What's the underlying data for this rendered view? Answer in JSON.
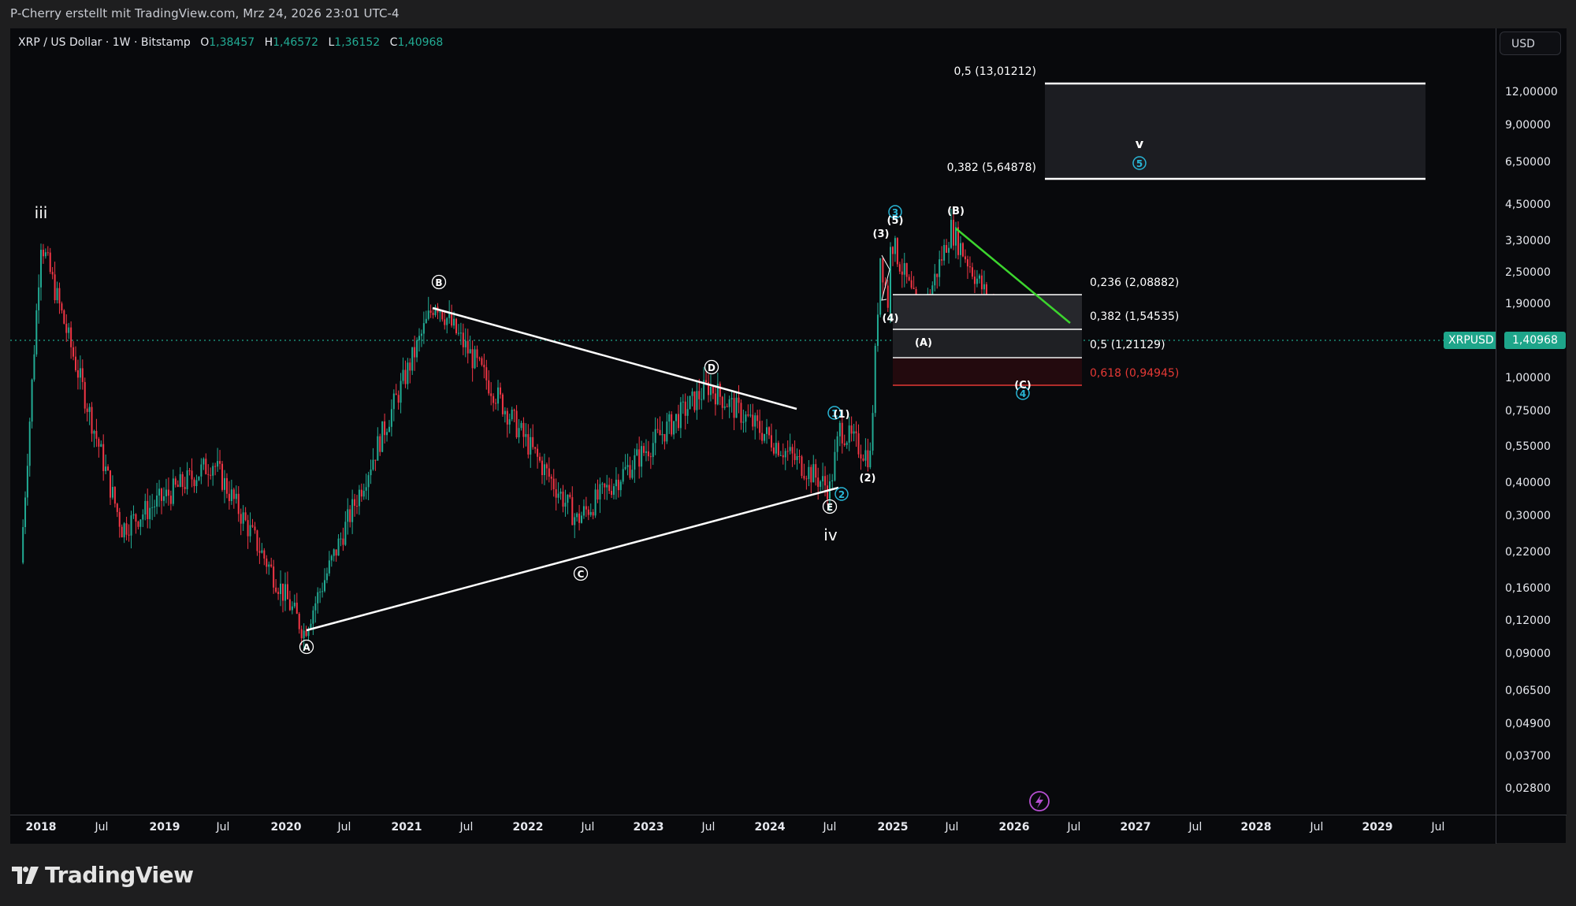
{
  "header": {
    "attribution": "P-Cherry erstellt mit TradingView.com, Mrz 24, 2026 23:01 UTC-4"
  },
  "legend": {
    "symbol_desc": "XRP / US Dollar · 1W · Bitstamp",
    "open_label": "O",
    "open": "1,38457",
    "high_label": "H",
    "high": "1,46572",
    "low_label": "L",
    "low": "1,36152",
    "close_label": "C",
    "close": "1,40968"
  },
  "price_axis": {
    "currency_button": "USD",
    "ticks": [
      "12,00000",
      "9,00000",
      "6,50000",
      "4,50000",
      "3,30000",
      "2,50000",
      "1,90000",
      "1,00000",
      "0,75000",
      "0,55000",
      "0,40000",
      "0,30000",
      "0,22000",
      "0,16000",
      "0,12000",
      "0,09000",
      "0,06500",
      "0,04900",
      "0,03700",
      "0,02800"
    ],
    "last_price_tag": {
      "symbol": "XRPUSD",
      "value": "1,40968"
    }
  },
  "time_axis": {
    "ticks": [
      "2018",
      "Jul",
      "2019",
      "Jul",
      "2020",
      "Jul",
      "2021",
      "Jul",
      "2022",
      "Jul",
      "2023",
      "Jul",
      "2024",
      "Jul",
      "2025",
      "Jul",
      "2026",
      "Jul",
      "2027",
      "Jul",
      "2028",
      "Jul",
      "2029",
      "Jul"
    ]
  },
  "annotations": {
    "wave_iii": "iii",
    "wave_iv": "iv",
    "wave_v": "v",
    "triangle": [
      "A",
      "B",
      "C",
      "D",
      "E"
    ],
    "minor_waves": [
      "(1)",
      "(2)",
      "(3)",
      "(4)",
      "(5)",
      "(A)",
      "(B)",
      "(C)"
    ],
    "circled_blue": [
      "1",
      "2",
      "3",
      "4",
      "5"
    ]
  },
  "fib_upper": {
    "levels": [
      {
        "label": "0,5 (13,01212)",
        "ratio": 0.5,
        "price": 13.01212
      },
      {
        "label": "0,382 (5,64878)",
        "ratio": 0.382,
        "price": 5.64878
      }
    ]
  },
  "fib_lower": {
    "levels": [
      {
        "label": "0,236 (2,08882)",
        "ratio": 0.236,
        "price": 2.08882,
        "color": "#ffffff"
      },
      {
        "label": "0,382 (1,54535)",
        "ratio": 0.382,
        "price": 1.54535,
        "color": "#ffffff"
      },
      {
        "label": "0,5 (1,21129)",
        "ratio": 0.5,
        "price": 1.21129,
        "color": "#ffffff"
      },
      {
        "label": "0,618 (0,94945)",
        "ratio": 0.618,
        "price": 0.94945,
        "color": "#e53935"
      }
    ]
  },
  "colors": {
    "up": "#22ab94",
    "down": "#f23645",
    "trendline": "#ffffff",
    "downtrend": "#3cd52e",
    "wave_blue": "#29b6d6",
    "fib_red": "#e53935",
    "background": "#08090c"
  },
  "footer": {
    "brand": "TradingView"
  },
  "chart_data": {
    "type": "candlestick",
    "title": "XRP / US Dollar · 1W · Bitstamp",
    "xlabel": "",
    "ylabel": "USD (log scale)",
    "y_scale": "log",
    "ylim": [
      0.025,
      14
    ],
    "x_range": [
      "2017-11",
      "2029-09"
    ],
    "last": {
      "open": 1.38457,
      "high": 1.46572,
      "low": 1.36152,
      "close": 1.40968
    },
    "key_points": [
      {
        "date": "2017-11",
        "price": 0.2
      },
      {
        "date": "2018-01",
        "price": 3.31,
        "label": "iii"
      },
      {
        "date": "2018-09",
        "price": 0.27
      },
      {
        "date": "2019-06",
        "price": 0.48
      },
      {
        "date": "2020-03",
        "price": 0.11,
        "label": "A"
      },
      {
        "date": "2021-04",
        "price": 1.96,
        "label": "B"
      },
      {
        "date": "2022-06",
        "price": 0.29,
        "label": "C"
      },
      {
        "date": "2023-07",
        "price": 0.93,
        "label": "D"
      },
      {
        "date": "2024-07",
        "price": 0.38,
        "label": "E / iv / 2"
      },
      {
        "date": "2024-08",
        "price": 0.64,
        "label": "(1) / 1"
      },
      {
        "date": "2024-11",
        "price": 0.5,
        "label": "(2)"
      },
      {
        "date": "2024-12",
        "price": 2.9,
        "label": "(3)"
      },
      {
        "date": "2025-01",
        "price": 1.7,
        "label": "(4)"
      },
      {
        "date": "2025-01",
        "price": 3.4,
        "label": "(5) / 3"
      },
      {
        "date": "2025-04",
        "price": 1.65,
        "label": "(A)"
      },
      {
        "date": "2025-07",
        "price": 3.65,
        "label": "(B)"
      },
      {
        "date": "2026-02",
        "price": 1.12,
        "label": "(C) / 4"
      },
      {
        "date": "2026-03",
        "price": 1.41
      }
    ],
    "projections": {
      "wave_5_target_zone": [
        5.64878,
        13.01212
      ],
      "correction_fib_levels": [
        2.08882,
        1.54535,
        1.21129,
        0.94945
      ]
    },
    "drawings": [
      {
        "type": "triangle_upper",
        "from": [
          "2021-04",
          1.96
        ],
        "to": [
          "2024-04",
          0.75
        ]
      },
      {
        "type": "triangle_lower",
        "from": [
          "2020-03",
          0.11
        ],
        "to": [
          "2024-07",
          0.39
        ]
      },
      {
        "type": "downtrend_green",
        "from": [
          "2025-07",
          3.65
        ],
        "to": [
          "2026-04",
          1.62
        ]
      }
    ]
  }
}
